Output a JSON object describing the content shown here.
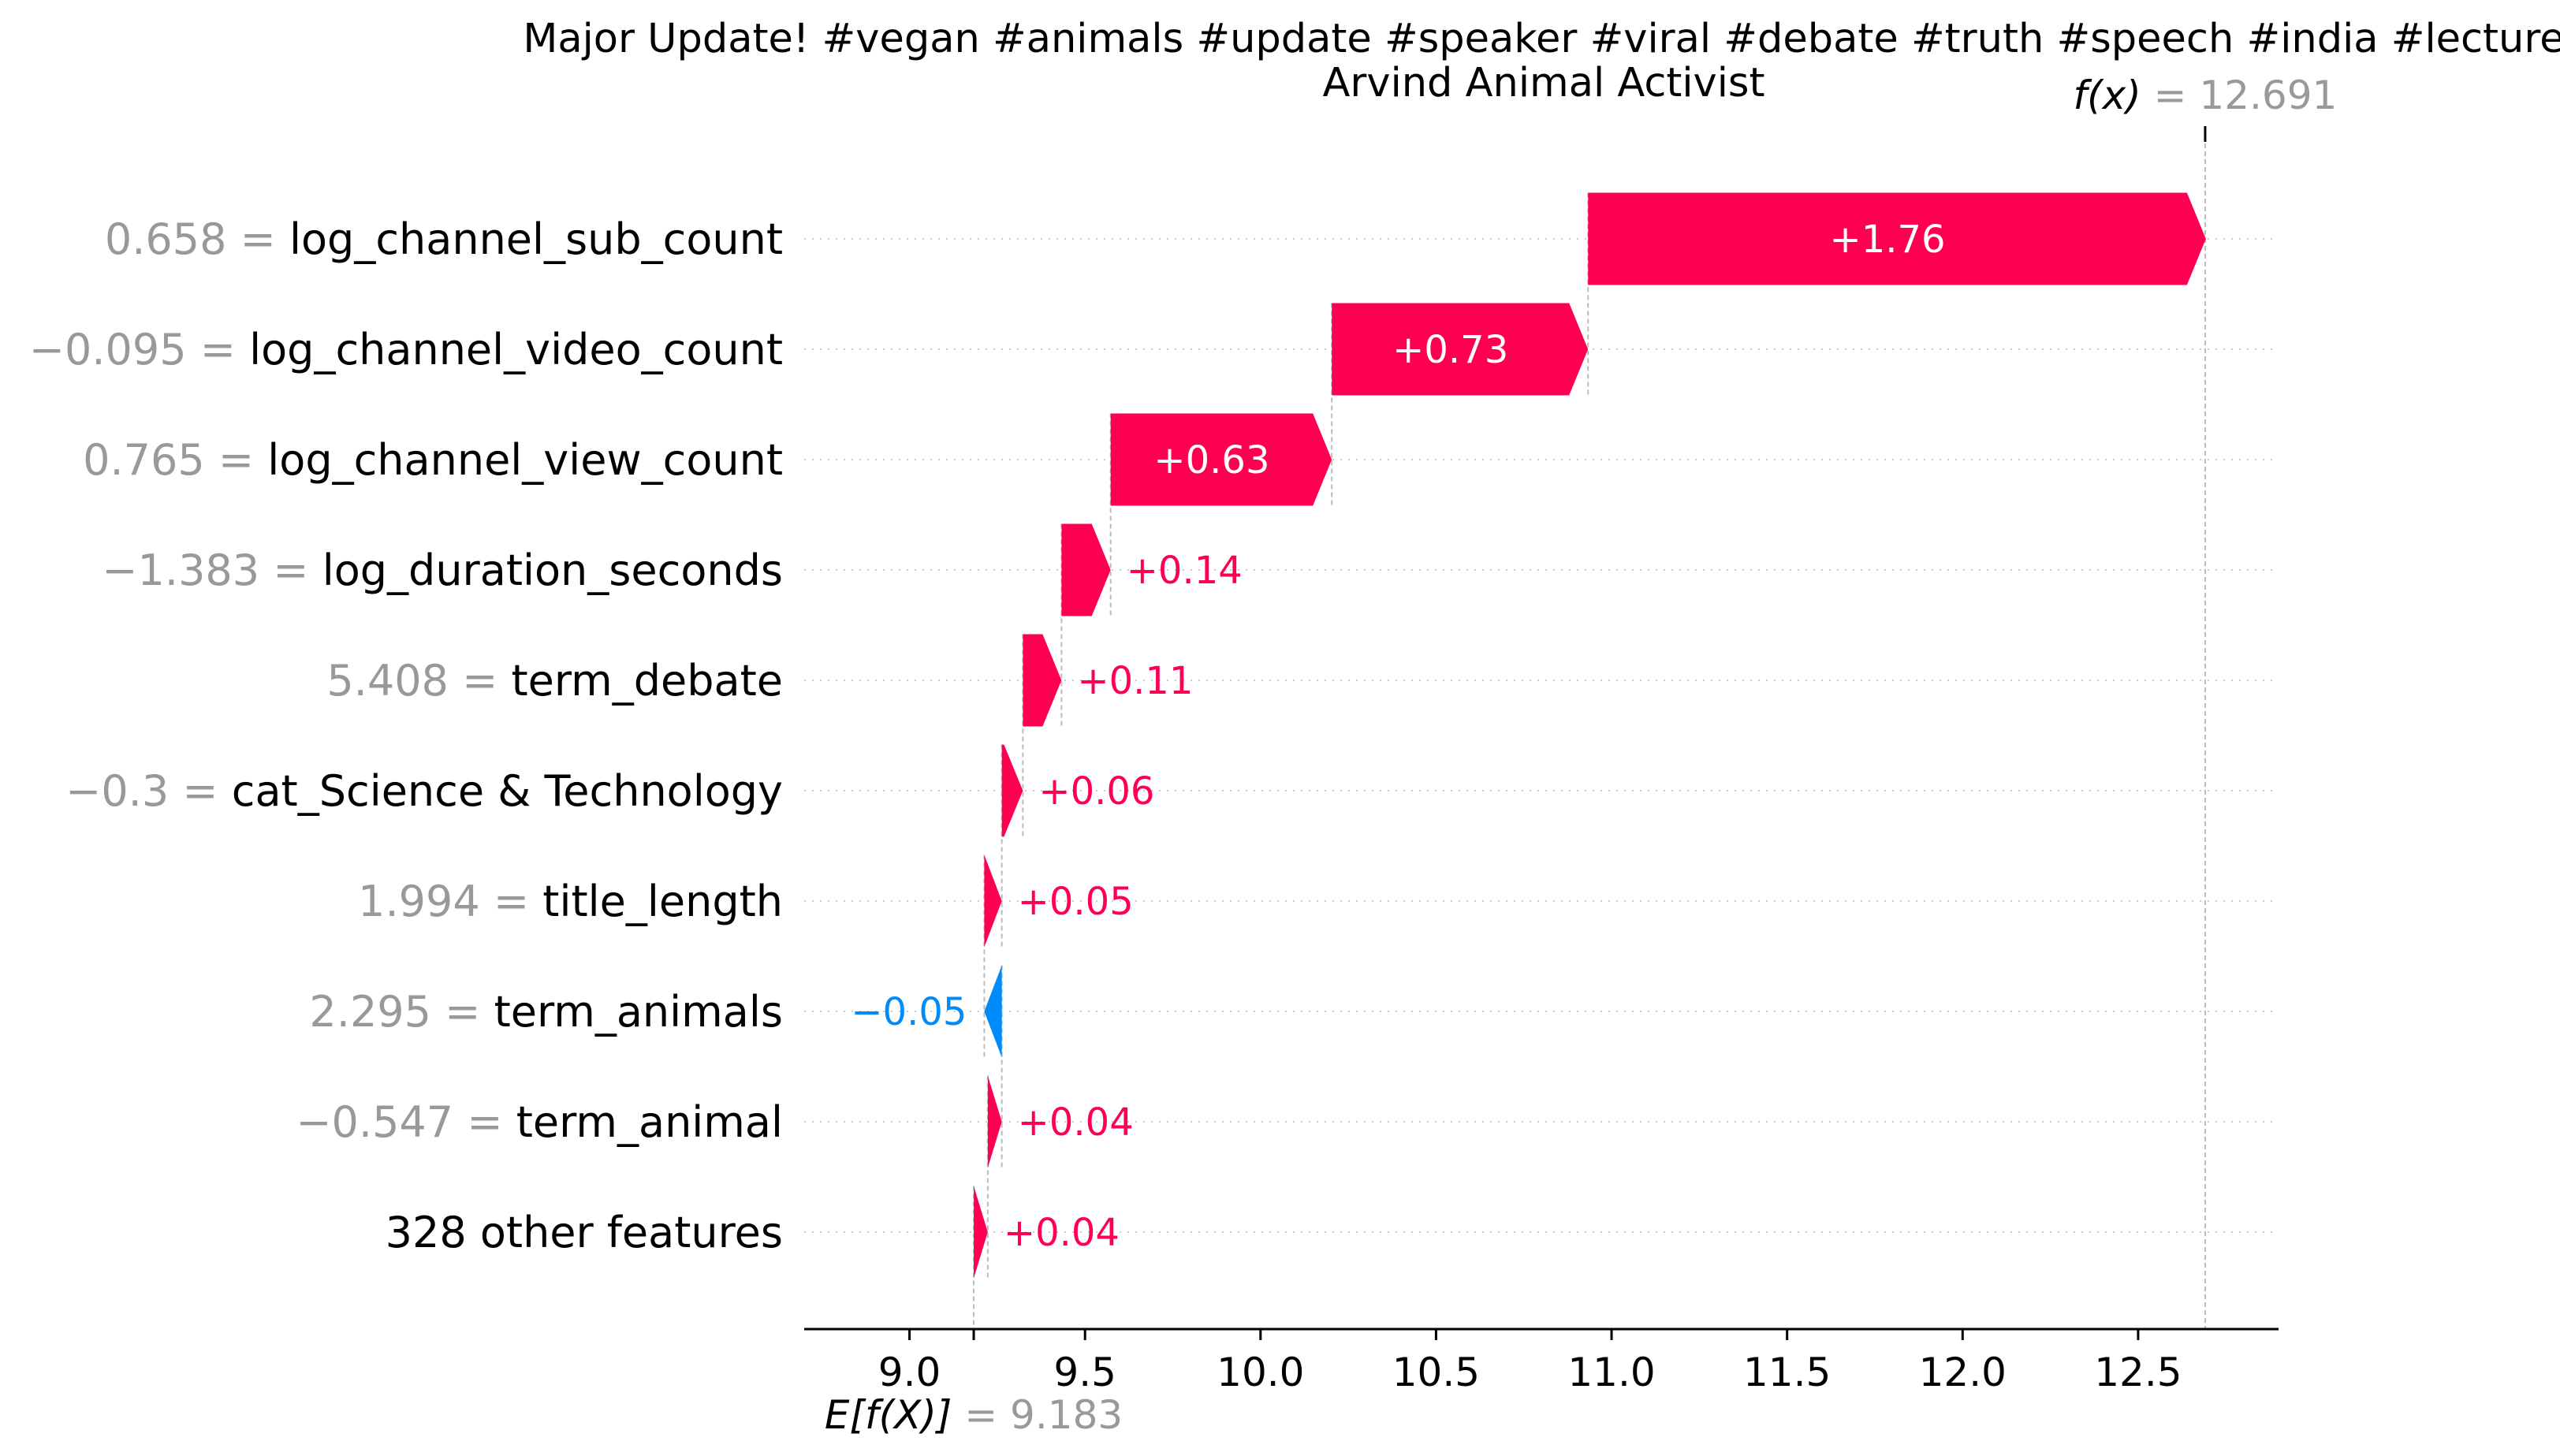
{
  "title_lines": [
    "Major Update! #vegan #animals #update #speaker #viral #debate #truth #speech #india #lecture",
    "Arvind Animal Activist"
  ],
  "fx": {
    "label": "f(x)",
    "value_text": "= 12.691"
  },
  "efx": {
    "label": "E[f(X)]",
    "value_text": "= 9.183"
  },
  "colors": {
    "positive": "#ff0051",
    "negative": "#008bfb",
    "value_gray": "#999999"
  },
  "chart_data": {
    "type": "bar",
    "subtype": "waterfall",
    "title": "Major Update! #vegan #animals #update #speaker #viral #debate #truth #speech #india #lecture\nArvind Animal Activist",
    "base_value": 9.183,
    "final_value": 12.691,
    "xlim": [
      8.7,
      12.9
    ],
    "xticks": [
      9.0,
      9.5,
      10.0,
      10.5,
      11.0,
      11.5,
      12.0,
      12.5
    ],
    "xtick_labels": [
      "9.0",
      "9.5",
      "10.0",
      "10.5",
      "11.0",
      "11.5",
      "12.0",
      "12.5"
    ],
    "grid": "horizontal dotted",
    "features": [
      {
        "value_text": "0.658",
        "name": "log_channel_sub_count",
        "contribution": 1.76,
        "label": "+1.76"
      },
      {
        "value_text": "−0.095",
        "name": "log_channel_video_count",
        "contribution": 0.73,
        "label": "+0.73"
      },
      {
        "value_text": "0.765",
        "name": "log_channel_view_count",
        "contribution": 0.63,
        "label": "+0.63"
      },
      {
        "value_text": "−1.383",
        "name": "log_duration_seconds",
        "contribution": 0.14,
        "label": "+0.14"
      },
      {
        "value_text": "5.408",
        "name": "term_debate",
        "contribution": 0.11,
        "label": "+0.11"
      },
      {
        "value_text": "−0.3",
        "name": "cat_Science & Technology",
        "contribution": 0.06,
        "label": "+0.06"
      },
      {
        "value_text": "1.994",
        "name": "title_length",
        "contribution": 0.05,
        "label": "+0.05"
      },
      {
        "value_text": "2.295",
        "name": "term_animals",
        "contribution": -0.05,
        "label": "−0.05"
      },
      {
        "value_text": "−0.547",
        "name": "term_animal",
        "contribution": 0.04,
        "label": "+0.04"
      },
      {
        "value_text": "",
        "name": "328 other features",
        "contribution": 0.04,
        "label": "+0.04"
      }
    ]
  }
}
